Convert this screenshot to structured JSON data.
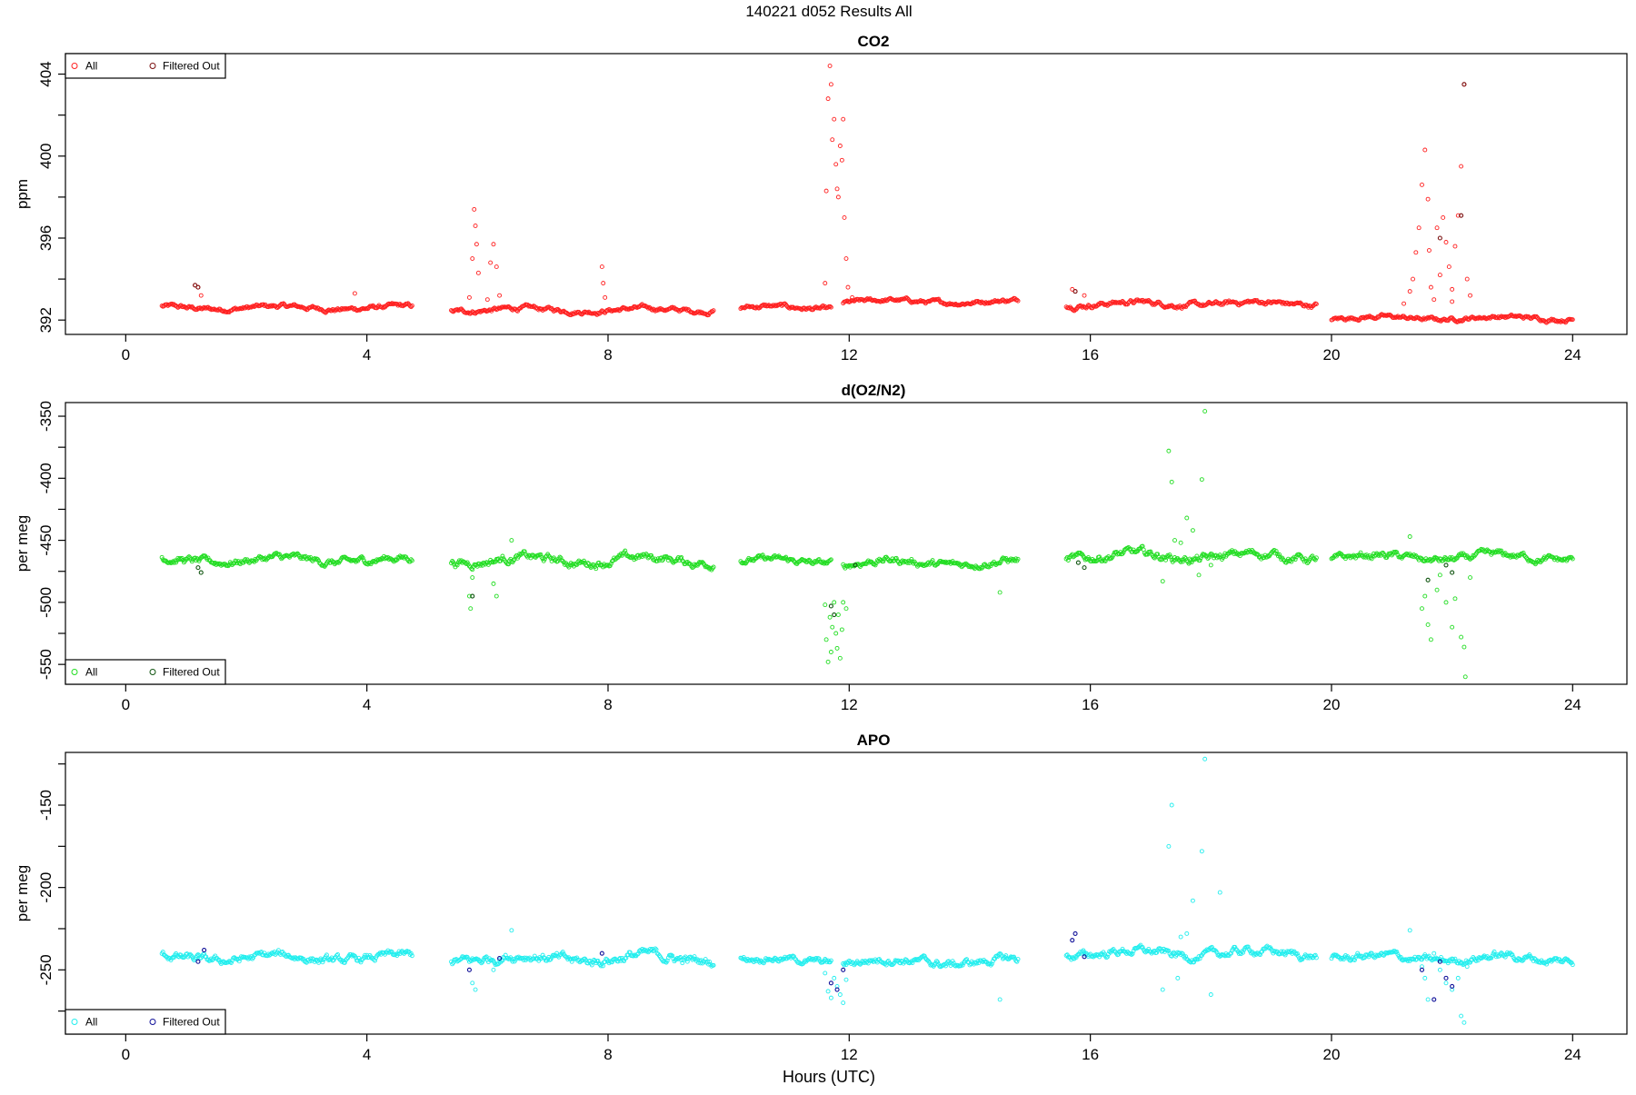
{
  "figure_title": "140221   d052   Results All",
  "x_axis_label": "Hours (UTC)",
  "chart_data": [
    {
      "type": "scatter",
      "title": "CO2",
      "ylabel": "ppm",
      "xlabel": "Hours (UTC)",
      "xlim": [
        -1,
        24.9
      ],
      "ylim": [
        391.3,
        405.0
      ],
      "xticks": [
        0,
        4,
        8,
        12,
        16,
        20,
        24
      ],
      "yticks": [
        392,
        396,
        400,
        404
      ],
      "grid": false,
      "legend": {
        "placement": "top-left",
        "entries": [
          "All",
          "Filtered Out"
        ]
      },
      "colors": {
        "all": "#ff2020",
        "filtered": "#7a1010"
      },
      "segments": [
        {
          "x0": 0.6,
          "x1": 4.75,
          "base": 392.6,
          "amp": 0.22
        },
        {
          "x0": 5.4,
          "x1": 9.75,
          "base": 392.5,
          "amp": 0.22
        },
        {
          "x0": 10.2,
          "x1": 11.7,
          "base": 392.6,
          "amp": 0.22
        },
        {
          "x0": 11.9,
          "x1": 14.8,
          "base": 392.9,
          "amp": 0.2
        },
        {
          "x0": 15.6,
          "x1": 19.75,
          "base": 392.8,
          "amp": 0.25
        },
        {
          "x0": 20.0,
          "x1": 24.0,
          "base": 392.1,
          "amp": 0.2
        }
      ],
      "spikes": [
        {
          "x": 1.15,
          "y": 393.7
        },
        {
          "x": 1.2,
          "y": 393.6
        },
        {
          "x": 1.25,
          "y": 393.2
        },
        {
          "x": 3.8,
          "y": 393.3
        },
        {
          "x": 5.7,
          "y": 393.1
        },
        {
          "x": 5.75,
          "y": 395.0
        },
        {
          "x": 5.78,
          "y": 397.4
        },
        {
          "x": 5.8,
          "y": 396.6
        },
        {
          "x": 5.82,
          "y": 395.7
        },
        {
          "x": 5.85,
          "y": 394.3
        },
        {
          "x": 6.0,
          "y": 393.0
        },
        {
          "x": 6.05,
          "y": 394.8
        },
        {
          "x": 6.1,
          "y": 395.7
        },
        {
          "x": 6.15,
          "y": 394.6
        },
        {
          "x": 6.2,
          "y": 393.2
        },
        {
          "x": 7.9,
          "y": 394.6
        },
        {
          "x": 7.92,
          "y": 393.8
        },
        {
          "x": 7.95,
          "y": 393.1
        },
        {
          "x": 11.6,
          "y": 393.8
        },
        {
          "x": 11.62,
          "y": 398.3
        },
        {
          "x": 11.65,
          "y": 402.8
        },
        {
          "x": 11.68,
          "y": 404.4
        },
        {
          "x": 11.7,
          "y": 403.5
        },
        {
          "x": 11.72,
          "y": 400.8
        },
        {
          "x": 11.75,
          "y": 401.8
        },
        {
          "x": 11.78,
          "y": 399.6
        },
        {
          "x": 11.8,
          "y": 398.4
        },
        {
          "x": 11.82,
          "y": 398.0
        },
        {
          "x": 11.85,
          "y": 400.5
        },
        {
          "x": 11.88,
          "y": 399.8
        },
        {
          "x": 11.9,
          "y": 401.8
        },
        {
          "x": 11.92,
          "y": 397.0
        },
        {
          "x": 11.95,
          "y": 395.0
        },
        {
          "x": 11.98,
          "y": 393.6
        },
        {
          "x": 12.05,
          "y": 393.1
        },
        {
          "x": 15.7,
          "y": 393.5
        },
        {
          "x": 15.75,
          "y": 393.4
        },
        {
          "x": 15.9,
          "y": 393.2
        },
        {
          "x": 21.2,
          "y": 392.8
        },
        {
          "x": 21.3,
          "y": 393.4
        },
        {
          "x": 21.35,
          "y": 394.0
        },
        {
          "x": 21.4,
          "y": 395.3
        },
        {
          "x": 21.45,
          "y": 396.5
        },
        {
          "x": 21.5,
          "y": 398.6
        },
        {
          "x": 21.55,
          "y": 400.3
        },
        {
          "x": 21.6,
          "y": 397.9
        },
        {
          "x": 21.62,
          "y": 395.4
        },
        {
          "x": 21.7,
          "y": 393.0
        },
        {
          "x": 21.75,
          "y": 396.5
        },
        {
          "x": 21.8,
          "y": 394.2
        },
        {
          "x": 21.85,
          "y": 397.0
        },
        {
          "x": 21.9,
          "y": 395.8
        },
        {
          "x": 21.95,
          "y": 394.6
        },
        {
          "x": 22.0,
          "y": 393.5
        },
        {
          "x": 22.05,
          "y": 395.6
        },
        {
          "x": 22.1,
          "y": 397.1
        },
        {
          "x": 22.15,
          "y": 399.5
        },
        {
          "x": 22.2,
          "y": 403.5
        },
        {
          "x": 22.25,
          "y": 394.0
        },
        {
          "x": 22.3,
          "y": 393.2
        },
        {
          "x": 21.65,
          "y": 393.6
        },
        {
          "x": 22.0,
          "y": 392.9
        }
      ],
      "filtered_points": [
        {
          "x": 1.15,
          "y": 393.7
        },
        {
          "x": 1.2,
          "y": 393.6
        },
        {
          "x": 15.75,
          "y": 393.4
        },
        {
          "x": 21.8,
          "y": 396.0
        },
        {
          "x": 22.15,
          "y": 397.1
        },
        {
          "x": 22.2,
          "y": 403.5
        }
      ]
    },
    {
      "type": "scatter",
      "title": "d(O2/N2)",
      "ylabel": "per meg",
      "xlabel": "Hours (UTC)",
      "xlim": [
        -1,
        24.9
      ],
      "ylim": [
        -566,
        -339
      ],
      "xticks": [
        0,
        4,
        8,
        12,
        16,
        20,
        24
      ],
      "yticks": [
        -550,
        -500,
        -450,
        -400,
        -350
      ],
      "grid": false,
      "legend": {
        "placement": "bottom-left",
        "entries": [
          "All",
          "Filtered Out"
        ]
      },
      "colors": {
        "all": "#22dd22",
        "filtered": "#115511"
      },
      "segments": [
        {
          "x0": 0.6,
          "x1": 4.75,
          "base": -466,
          "amp": 6
        },
        {
          "x0": 5.4,
          "x1": 9.75,
          "base": -466,
          "amp": 7
        },
        {
          "x0": 10.2,
          "x1": 11.7,
          "base": -467,
          "amp": 5
        },
        {
          "x0": 11.9,
          "x1": 14.8,
          "base": -468,
          "amp": 6
        },
        {
          "x0": 15.6,
          "x1": 19.75,
          "base": -463,
          "amp": 7
        },
        {
          "x0": 20.0,
          "x1": 24.0,
          "base": -464,
          "amp": 6
        }
      ],
      "spikes": [
        {
          "x": 5.7,
          "y": -495
        },
        {
          "x": 5.72,
          "y": -505
        },
        {
          "x": 5.75,
          "y": -480
        },
        {
          "x": 6.1,
          "y": -485
        },
        {
          "x": 6.15,
          "y": -495
        },
        {
          "x": 6.4,
          "y": -450
        },
        {
          "x": 11.6,
          "y": -502
        },
        {
          "x": 11.62,
          "y": -530
        },
        {
          "x": 11.65,
          "y": -548
        },
        {
          "x": 11.68,
          "y": -512
        },
        {
          "x": 11.7,
          "y": -540
        },
        {
          "x": 11.72,
          "y": -520
        },
        {
          "x": 11.75,
          "y": -500
        },
        {
          "x": 11.78,
          "y": -525
        },
        {
          "x": 11.8,
          "y": -537
        },
        {
          "x": 11.82,
          "y": -510
        },
        {
          "x": 11.85,
          "y": -545
        },
        {
          "x": 11.88,
          "y": -522
        },
        {
          "x": 11.9,
          "y": -500
        },
        {
          "x": 11.95,
          "y": -505
        },
        {
          "x": 17.3,
          "y": -378
        },
        {
          "x": 17.35,
          "y": -403
        },
        {
          "x": 17.9,
          "y": -346
        },
        {
          "x": 17.6,
          "y": -432
        },
        {
          "x": 17.7,
          "y": -442
        },
        {
          "x": 17.5,
          "y": -452
        },
        {
          "x": 17.2,
          "y": -483
        },
        {
          "x": 17.8,
          "y": -478
        },
        {
          "x": 17.65,
          "y": -465
        },
        {
          "x": 17.85,
          "y": -401
        },
        {
          "x": 18.0,
          "y": -470
        },
        {
          "x": 17.4,
          "y": -450
        },
        {
          "x": 21.55,
          "y": -495
        },
        {
          "x": 21.5,
          "y": -505
        },
        {
          "x": 21.6,
          "y": -518
        },
        {
          "x": 21.65,
          "y": -530
        },
        {
          "x": 21.75,
          "y": -490
        },
        {
          "x": 21.8,
          "y": -478
        },
        {
          "x": 21.9,
          "y": -500
        },
        {
          "x": 22.0,
          "y": -520
        },
        {
          "x": 22.05,
          "y": -497
        },
        {
          "x": 22.15,
          "y": -528
        },
        {
          "x": 22.2,
          "y": -536
        },
        {
          "x": 22.22,
          "y": -560
        },
        {
          "x": 22.3,
          "y": -480
        },
        {
          "x": 21.3,
          "y": -447
        },
        {
          "x": 14.5,
          "y": -492
        }
      ],
      "filtered_points": [
        {
          "x": 1.2,
          "y": -472
        },
        {
          "x": 1.25,
          "y": -476
        },
        {
          "x": 5.75,
          "y": -495
        },
        {
          "x": 11.7,
          "y": -503
        },
        {
          "x": 11.75,
          "y": -510
        },
        {
          "x": 12.1,
          "y": -470
        },
        {
          "x": 15.8,
          "y": -468
        },
        {
          "x": 15.9,
          "y": -472
        },
        {
          "x": 21.6,
          "y": -482
        },
        {
          "x": 21.9,
          "y": -470
        },
        {
          "x": 22.0,
          "y": -476
        }
      ]
    },
    {
      "type": "scatter",
      "title": "APO",
      "ylabel": "per meg",
      "xlabel": "Hours (UTC)",
      "xlim": [
        -1,
        24.9
      ],
      "ylim": [
        -289,
        -118
      ],
      "xticks": [
        0,
        4,
        8,
        12,
        16,
        20,
        24
      ],
      "yticks": [
        -250,
        -200,
        -150
      ],
      "grid": false,
      "legend": {
        "placement": "bottom-left",
        "entries": [
          "All",
          "Filtered Out"
        ]
      },
      "colors": {
        "all": "#22eeee",
        "filtered": "#111199"
      },
      "segments": [
        {
          "x0": 0.6,
          "x1": 4.75,
          "base": -243,
          "amp": 5
        },
        {
          "x0": 5.4,
          "x1": 9.75,
          "base": -243,
          "amp": 6
        },
        {
          "x0": 10.2,
          "x1": 11.7,
          "base": -244,
          "amp": 4
        },
        {
          "x0": 11.9,
          "x1": 14.8,
          "base": -245,
          "amp": 5
        },
        {
          "x0": 15.6,
          "x1": 19.75,
          "base": -240,
          "amp": 5
        },
        {
          "x0": 20.0,
          "x1": 24.0,
          "base": -243,
          "amp": 5
        }
      ],
      "spikes": [
        {
          "x": 5.75,
          "y": -258
        },
        {
          "x": 5.8,
          "y": -262
        },
        {
          "x": 6.1,
          "y": -250
        },
        {
          "x": 6.4,
          "y": -226
        },
        {
          "x": 11.6,
          "y": -252
        },
        {
          "x": 11.65,
          "y": -263
        },
        {
          "x": 11.7,
          "y": -267
        },
        {
          "x": 11.75,
          "y": -255
        },
        {
          "x": 11.8,
          "y": -260
        },
        {
          "x": 11.85,
          "y": -265
        },
        {
          "x": 11.9,
          "y": -270
        },
        {
          "x": 11.95,
          "y": -256
        },
        {
          "x": 14.5,
          "y": -268
        },
        {
          "x": 17.35,
          "y": -150
        },
        {
          "x": 17.3,
          "y": -175
        },
        {
          "x": 17.9,
          "y": -122
        },
        {
          "x": 17.85,
          "y": -178
        },
        {
          "x": 17.7,
          "y": -208
        },
        {
          "x": 18.15,
          "y": -203
        },
        {
          "x": 17.5,
          "y": -230
        },
        {
          "x": 17.6,
          "y": -228
        },
        {
          "x": 17.2,
          "y": -262
        },
        {
          "x": 18.0,
          "y": -265
        },
        {
          "x": 17.45,
          "y": -255
        },
        {
          "x": 21.5,
          "y": -248
        },
        {
          "x": 21.55,
          "y": -255
        },
        {
          "x": 21.6,
          "y": -268
        },
        {
          "x": 21.7,
          "y": -240
        },
        {
          "x": 21.8,
          "y": -250
        },
        {
          "x": 21.9,
          "y": -258
        },
        {
          "x": 22.0,
          "y": -262
        },
        {
          "x": 22.1,
          "y": -255
        },
        {
          "x": 22.15,
          "y": -278
        },
        {
          "x": 22.2,
          "y": -282
        },
        {
          "x": 22.25,
          "y": -248
        },
        {
          "x": 21.3,
          "y": -226
        }
      ],
      "filtered_points": [
        {
          "x": 1.2,
          "y": -245
        },
        {
          "x": 1.3,
          "y": -238
        },
        {
          "x": 5.7,
          "y": -250
        },
        {
          "x": 6.2,
          "y": -243
        },
        {
          "x": 7.9,
          "y": -240
        },
        {
          "x": 11.7,
          "y": -258
        },
        {
          "x": 11.8,
          "y": -262
        },
        {
          "x": 11.9,
          "y": -250
        },
        {
          "x": 15.7,
          "y": -232
        },
        {
          "x": 15.75,
          "y": -228
        },
        {
          "x": 15.9,
          "y": -242
        },
        {
          "x": 21.5,
          "y": -250
        },
        {
          "x": 21.7,
          "y": -268
        },
        {
          "x": 21.8,
          "y": -245
        },
        {
          "x": 21.9,
          "y": -255
        },
        {
          "x": 22.0,
          "y": -260
        }
      ]
    }
  ]
}
